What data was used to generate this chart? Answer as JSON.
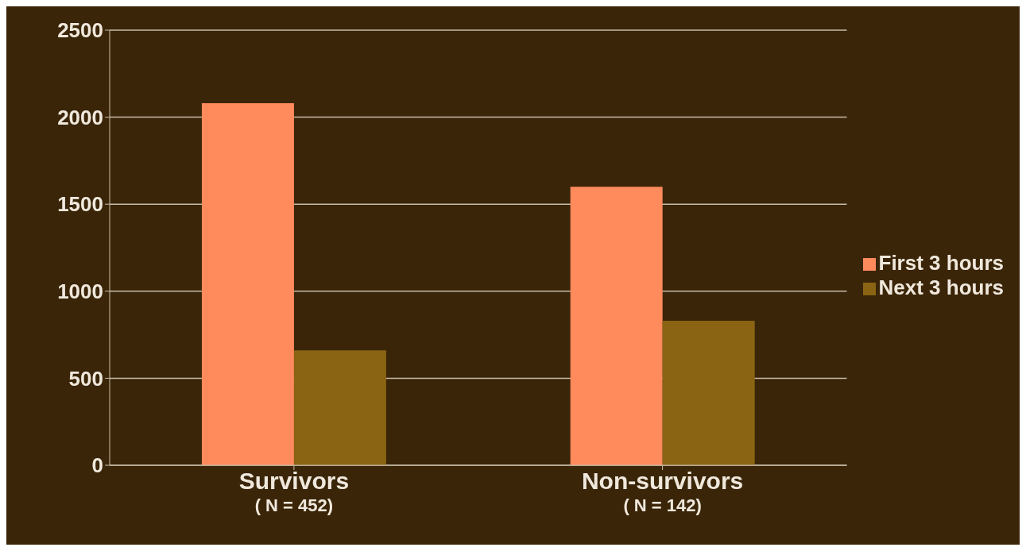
{
  "chart_data": {
    "type": "bar",
    "categories": [
      "Survivors\n( N = 452)",
      "Non-survivors\n( N = 142)"
    ],
    "series": [
      {
        "name": "First 3 hours",
        "color": "#ff8a5c",
        "values": [
          2080,
          1600
        ]
      },
      {
        "name": "Next 3 hours",
        "color": "#8a6412",
        "values": [
          660,
          830
        ]
      }
    ],
    "ylim": [
      0,
      2500
    ],
    "yticks": [
      0,
      500,
      1000,
      1500,
      2000,
      2500
    ],
    "grid": "y",
    "legend": "right"
  }
}
